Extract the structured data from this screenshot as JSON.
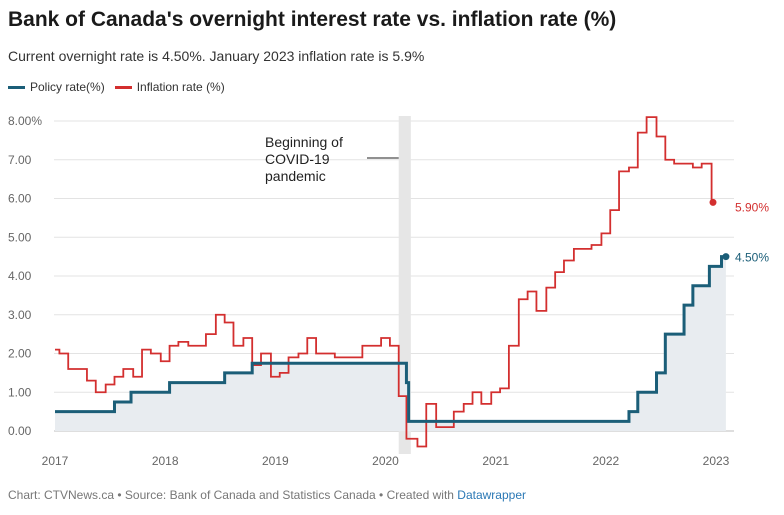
{
  "header": {
    "title": "Bank of Canada's overnight interest rate vs. inflation rate (%)",
    "subtitle": "Current overnight rate is 4.50%. January 2023 inflation rate is 5.9%"
  },
  "footer": {
    "text": "Chart: CTVNews.ca • Source: Bank of Canada and Statistics Canada • Created with ",
    "link_text": "Datawrapper"
  },
  "colors": {
    "policy": "#1b5e78",
    "inflation": "#d32f2f",
    "area": "#e8ecf0",
    "covid_band": "#e6e6e6"
  },
  "chart_data": {
    "type": "line",
    "title": "Bank of Canada's overnight interest rate vs. inflation rate (%)",
    "subtitle": "Current overnight rate is 4.50%. January 2023 inflation rate is 5.9%",
    "xlabel": "",
    "ylabel": "",
    "xlim": [
      2017,
      2023.15
    ],
    "ylim": [
      -0.5,
      8.4
    ],
    "x_ticks": [
      "2017",
      "2018",
      "2019",
      "2020",
      "2021",
      "2022",
      "2023"
    ],
    "y_ticks": [
      "0.00",
      "1.00",
      "2.00",
      "3.00",
      "4.00",
      "5.00",
      "6.00",
      "7.00",
      "8.00%"
    ],
    "y_tick_values": [
      0,
      1,
      2,
      3,
      4,
      5,
      6,
      7,
      8
    ],
    "grid": true,
    "legend_position": "top-left",
    "annotation": {
      "text_lines": [
        "Beginning of",
        "COVID-19",
        "pandemic"
      ],
      "band": [
        2020.12,
        2020.23
      ]
    },
    "series": [
      {
        "name": "Policy rate(%)",
        "step": true,
        "fill": true,
        "end_label": "4.50%",
        "points": [
          [
            2017.0,
            0.5
          ],
          [
            2017.54,
            0.75
          ],
          [
            2017.69,
            1.0
          ],
          [
            2018.04,
            1.25
          ],
          [
            2018.54,
            1.5
          ],
          [
            2018.79,
            1.75
          ],
          [
            2020.19,
            1.25
          ],
          [
            2020.21,
            0.25
          ],
          [
            2022.21,
            0.5
          ],
          [
            2022.29,
            1.0
          ],
          [
            2022.46,
            1.5
          ],
          [
            2022.54,
            2.5
          ],
          [
            2022.71,
            3.25
          ],
          [
            2022.79,
            3.75
          ],
          [
            2022.94,
            4.25
          ],
          [
            2023.05,
            4.5
          ],
          [
            2023.09,
            4.5
          ]
        ]
      },
      {
        "name": "Inflation rate (%)",
        "step": true,
        "end_label": "5.90%",
        "points": [
          [
            2017.0,
            2.1
          ],
          [
            2017.04,
            2.0
          ],
          [
            2017.12,
            1.6
          ],
          [
            2017.29,
            1.3
          ],
          [
            2017.37,
            1.0
          ],
          [
            2017.46,
            1.2
          ],
          [
            2017.54,
            1.4
          ],
          [
            2017.62,
            1.6
          ],
          [
            2017.71,
            1.4
          ],
          [
            2017.79,
            2.1
          ],
          [
            2017.87,
            2.0
          ],
          [
            2017.96,
            1.8
          ],
          [
            2018.04,
            2.2
          ],
          [
            2018.12,
            2.3
          ],
          [
            2018.21,
            2.2
          ],
          [
            2018.37,
            2.5
          ],
          [
            2018.46,
            3.0
          ],
          [
            2018.54,
            2.8
          ],
          [
            2018.62,
            2.2
          ],
          [
            2018.71,
            2.4
          ],
          [
            2018.79,
            1.7
          ],
          [
            2018.87,
            2.0
          ],
          [
            2018.96,
            1.4
          ],
          [
            2019.04,
            1.5
          ],
          [
            2019.12,
            1.9
          ],
          [
            2019.21,
            2.0
          ],
          [
            2019.29,
            2.4
          ],
          [
            2019.37,
            2.0
          ],
          [
            2019.54,
            1.9
          ],
          [
            2019.79,
            2.2
          ],
          [
            2019.96,
            2.4
          ],
          [
            2020.04,
            2.2
          ],
          [
            2020.12,
            0.9
          ],
          [
            2020.19,
            -0.2
          ],
          [
            2020.29,
            -0.4
          ],
          [
            2020.37,
            0.7
          ],
          [
            2020.46,
            0.1
          ],
          [
            2020.62,
            0.5
          ],
          [
            2020.71,
            0.7
          ],
          [
            2020.79,
            1.0
          ],
          [
            2020.87,
            0.7
          ],
          [
            2020.96,
            1.0
          ],
          [
            2021.04,
            1.1
          ],
          [
            2021.12,
            2.2
          ],
          [
            2021.21,
            3.4
          ],
          [
            2021.29,
            3.6
          ],
          [
            2021.37,
            3.1
          ],
          [
            2021.46,
            3.7
          ],
          [
            2021.54,
            4.1
          ],
          [
            2021.62,
            4.4
          ],
          [
            2021.71,
            4.7
          ],
          [
            2021.87,
            4.8
          ],
          [
            2021.96,
            5.1
          ],
          [
            2022.04,
            5.7
          ],
          [
            2022.12,
            6.7
          ],
          [
            2022.21,
            6.8
          ],
          [
            2022.29,
            7.7
          ],
          [
            2022.37,
            8.1
          ],
          [
            2022.46,
            7.6
          ],
          [
            2022.54,
            7.0
          ],
          [
            2022.62,
            6.9
          ],
          [
            2022.79,
            6.8
          ],
          [
            2022.87,
            6.9
          ],
          [
            2022.96,
            5.9
          ],
          [
            2023.0,
            5.9
          ]
        ]
      }
    ]
  }
}
